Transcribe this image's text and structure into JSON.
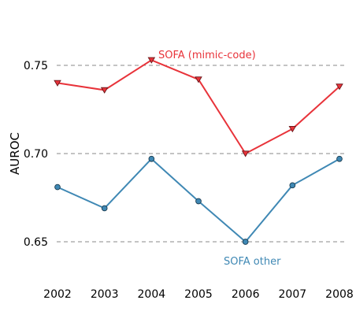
{
  "chart_data": {
    "type": "line",
    "title": "",
    "xlabel": "",
    "ylabel": "AUROC",
    "x": [
      "2002",
      "2003",
      "2004",
      "2005",
      "2006",
      "2007",
      "2008"
    ],
    "ylim": [
      0.625,
      0.78
    ],
    "yticks": [
      "0.65",
      "0.70",
      "0.75"
    ],
    "grid": "horizontal dashed",
    "legend": "inline labels",
    "series": [
      {
        "name": "SOFA (mimic-code)",
        "color": "#e8333a",
        "marker": "triangle-down",
        "values": [
          0.74,
          0.736,
          0.753,
          0.742,
          0.7,
          0.714,
          0.738
        ]
      },
      {
        "name": "SOFA  other",
        "color": "#3f88b4",
        "marker": "circle",
        "values": [
          0.681,
          0.669,
          0.697,
          0.673,
          0.65,
          0.682,
          0.697
        ]
      }
    ]
  }
}
